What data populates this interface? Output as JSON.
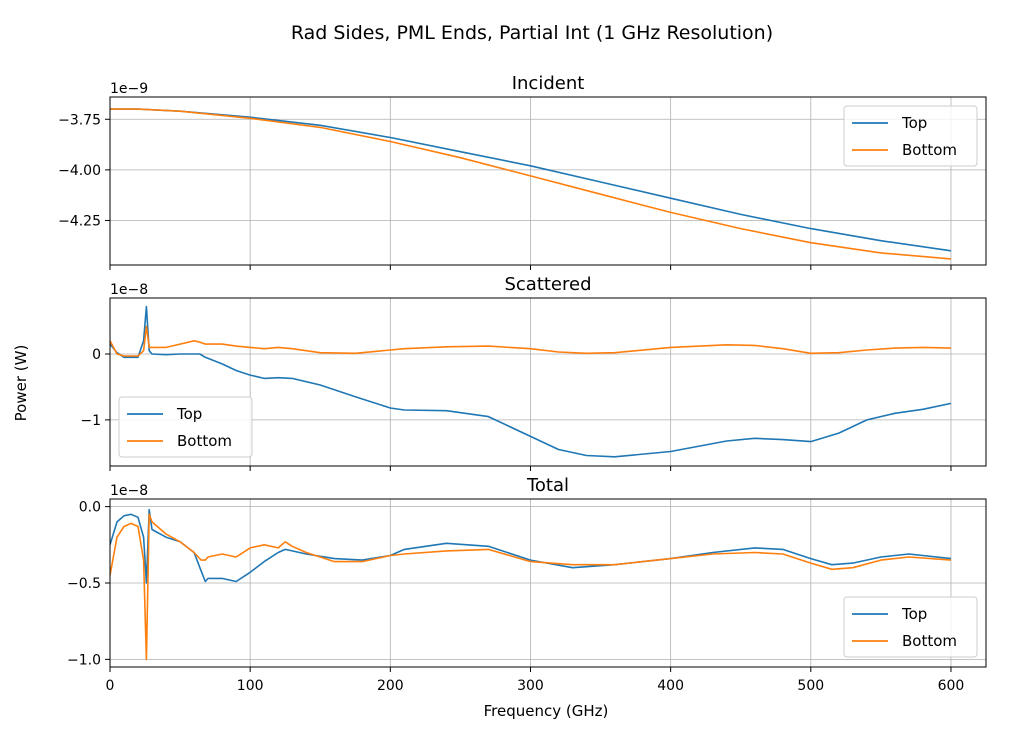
{
  "figure": {
    "title": "Rad Sides, PML Ends, Partial Int (1 GHz Resolution)",
    "xlabel": "Frequency (GHz)",
    "ylabel": "Power (W)"
  },
  "colors": {
    "top": "#1f77b4",
    "bottom": "#ff7f0e"
  },
  "chart_data": [
    {
      "type": "line",
      "title": "Incident",
      "offset_label": "1e−9",
      "xlim": [
        0,
        625
      ],
      "ylim": [
        -4.47,
        -3.64
      ],
      "xticks": [
        0,
        100,
        200,
        300,
        400,
        500,
        600
      ],
      "yticks": [
        -3.75,
        -4.0,
        -4.25
      ],
      "ytick_labels": [
        "−3.75",
        "−4.00",
        "−4.25"
      ],
      "x_tick_labels_shown": false,
      "grid": true,
      "legend": "upper right",
      "x": [
        0,
        20,
        50,
        100,
        150,
        200,
        250,
        300,
        350,
        400,
        450,
        500,
        550,
        600
      ],
      "series": [
        {
          "name": "Top",
          "color_key": "top",
          "values": [
            -3.7,
            -3.7,
            -3.71,
            -3.74,
            -3.78,
            -3.84,
            -3.91,
            -3.98,
            -4.06,
            -4.14,
            -4.22,
            -4.29,
            -4.35,
            -4.4
          ]
        },
        {
          "name": "Bottom",
          "color_key": "bottom",
          "values": [
            -3.7,
            -3.7,
            -3.71,
            -3.745,
            -3.79,
            -3.86,
            -3.94,
            -4.03,
            -4.12,
            -4.21,
            -4.29,
            -4.36,
            -4.41,
            -4.44
          ]
        }
      ]
    },
    {
      "type": "line",
      "title": "Scattered",
      "offset_label": "1e−8",
      "xlim": [
        0,
        625
      ],
      "ylim": [
        -1.7,
        0.85
      ],
      "xticks": [
        0,
        100,
        200,
        300,
        400,
        500,
        600
      ],
      "yticks": [
        0,
        -1
      ],
      "ytick_labels": [
        "0",
        "−1"
      ],
      "x_tick_labels_shown": false,
      "grid": true,
      "legend": "lower left",
      "x": [
        0,
        5,
        10,
        20,
        24,
        26,
        28,
        30,
        40,
        50,
        60,
        64,
        68,
        80,
        90,
        100,
        110,
        120,
        130,
        150,
        175,
        200,
        210,
        240,
        270,
        300,
        320,
        340,
        360,
        400,
        440,
        460,
        480,
        500,
        520,
        540,
        560,
        580,
        600
      ],
      "series": [
        {
          "name": "Top",
          "color_key": "top",
          "values": [
            0.15,
            0.02,
            -0.05,
            -0.05,
            0.2,
            0.72,
            0.05,
            0.0,
            -0.01,
            0.0,
            0.0,
            0.0,
            -0.05,
            -0.15,
            -0.25,
            -0.32,
            -0.37,
            -0.36,
            -0.37,
            -0.47,
            -0.65,
            -0.82,
            -0.85,
            -0.86,
            -0.95,
            -1.25,
            -1.45,
            -1.54,
            -1.56,
            -1.48,
            -1.32,
            -1.28,
            -1.3,
            -1.33,
            -1.2,
            -1.0,
            -0.9,
            -0.84,
            -0.75
          ]
        },
        {
          "name": "Bottom",
          "color_key": "bottom",
          "values": [
            0.2,
            0.0,
            -0.03,
            -0.03,
            0.05,
            0.42,
            0.1,
            0.1,
            0.1,
            0.15,
            0.2,
            0.18,
            0.15,
            0.15,
            0.12,
            0.1,
            0.08,
            0.1,
            0.08,
            0.02,
            0.01,
            0.06,
            0.08,
            0.11,
            0.12,
            0.08,
            0.03,
            0.01,
            0.02,
            0.1,
            0.14,
            0.13,
            0.08,
            0.01,
            0.02,
            0.06,
            0.09,
            0.1,
            0.09
          ]
        }
      ]
    },
    {
      "type": "line",
      "title": "Total",
      "offset_label": "1e−8",
      "xlim": [
        0,
        625
      ],
      "ylim": [
        -1.05,
        0.05
      ],
      "xticks": [
        0,
        100,
        200,
        300,
        400,
        500,
        600
      ],
      "xtick_labels": [
        "0",
        "100",
        "200",
        "300",
        "400",
        "500",
        "600"
      ],
      "yticks": [
        0.0,
        -0.5,
        -1.0
      ],
      "ytick_labels": [
        "0.0",
        "−0.5",
        "−1.0"
      ],
      "x_tick_labels_shown": true,
      "grid": true,
      "legend": "lower right",
      "x": [
        0,
        5,
        10,
        15,
        20,
        24,
        26,
        28,
        30,
        40,
        50,
        60,
        65,
        68,
        70,
        80,
        90,
        100,
        110,
        120,
        125,
        130,
        140,
        160,
        180,
        200,
        210,
        240,
        270,
        300,
        330,
        360,
        400,
        430,
        460,
        480,
        500,
        515,
        530,
        550,
        570,
        600
      ],
      "series": [
        {
          "name": "Top",
          "color_key": "top",
          "values": [
            -0.25,
            -0.1,
            -0.06,
            -0.05,
            -0.07,
            -0.2,
            -0.5,
            -0.02,
            -0.15,
            -0.2,
            -0.23,
            -0.3,
            -0.42,
            -0.49,
            -0.47,
            -0.47,
            -0.49,
            -0.43,
            -0.36,
            -0.3,
            -0.28,
            -0.29,
            -0.31,
            -0.34,
            -0.35,
            -0.32,
            -0.28,
            -0.24,
            -0.26,
            -0.35,
            -0.4,
            -0.38,
            -0.34,
            -0.3,
            -0.27,
            -0.28,
            -0.34,
            -0.38,
            -0.37,
            -0.33,
            -0.31,
            -0.34
          ]
        },
        {
          "name": "Bottom",
          "color_key": "bottom",
          "values": [
            -0.45,
            -0.2,
            -0.13,
            -0.11,
            -0.13,
            -0.35,
            -1.0,
            -0.05,
            -0.1,
            -0.18,
            -0.23,
            -0.3,
            -0.35,
            -0.35,
            -0.33,
            -0.31,
            -0.33,
            -0.27,
            -0.25,
            -0.27,
            -0.23,
            -0.26,
            -0.3,
            -0.36,
            -0.36,
            -0.32,
            -0.31,
            -0.29,
            -0.28,
            -0.36,
            -0.38,
            -0.38,
            -0.34,
            -0.31,
            -0.3,
            -0.31,
            -0.37,
            -0.41,
            -0.4,
            -0.35,
            -0.33,
            -0.35
          ]
        }
      ]
    }
  ]
}
